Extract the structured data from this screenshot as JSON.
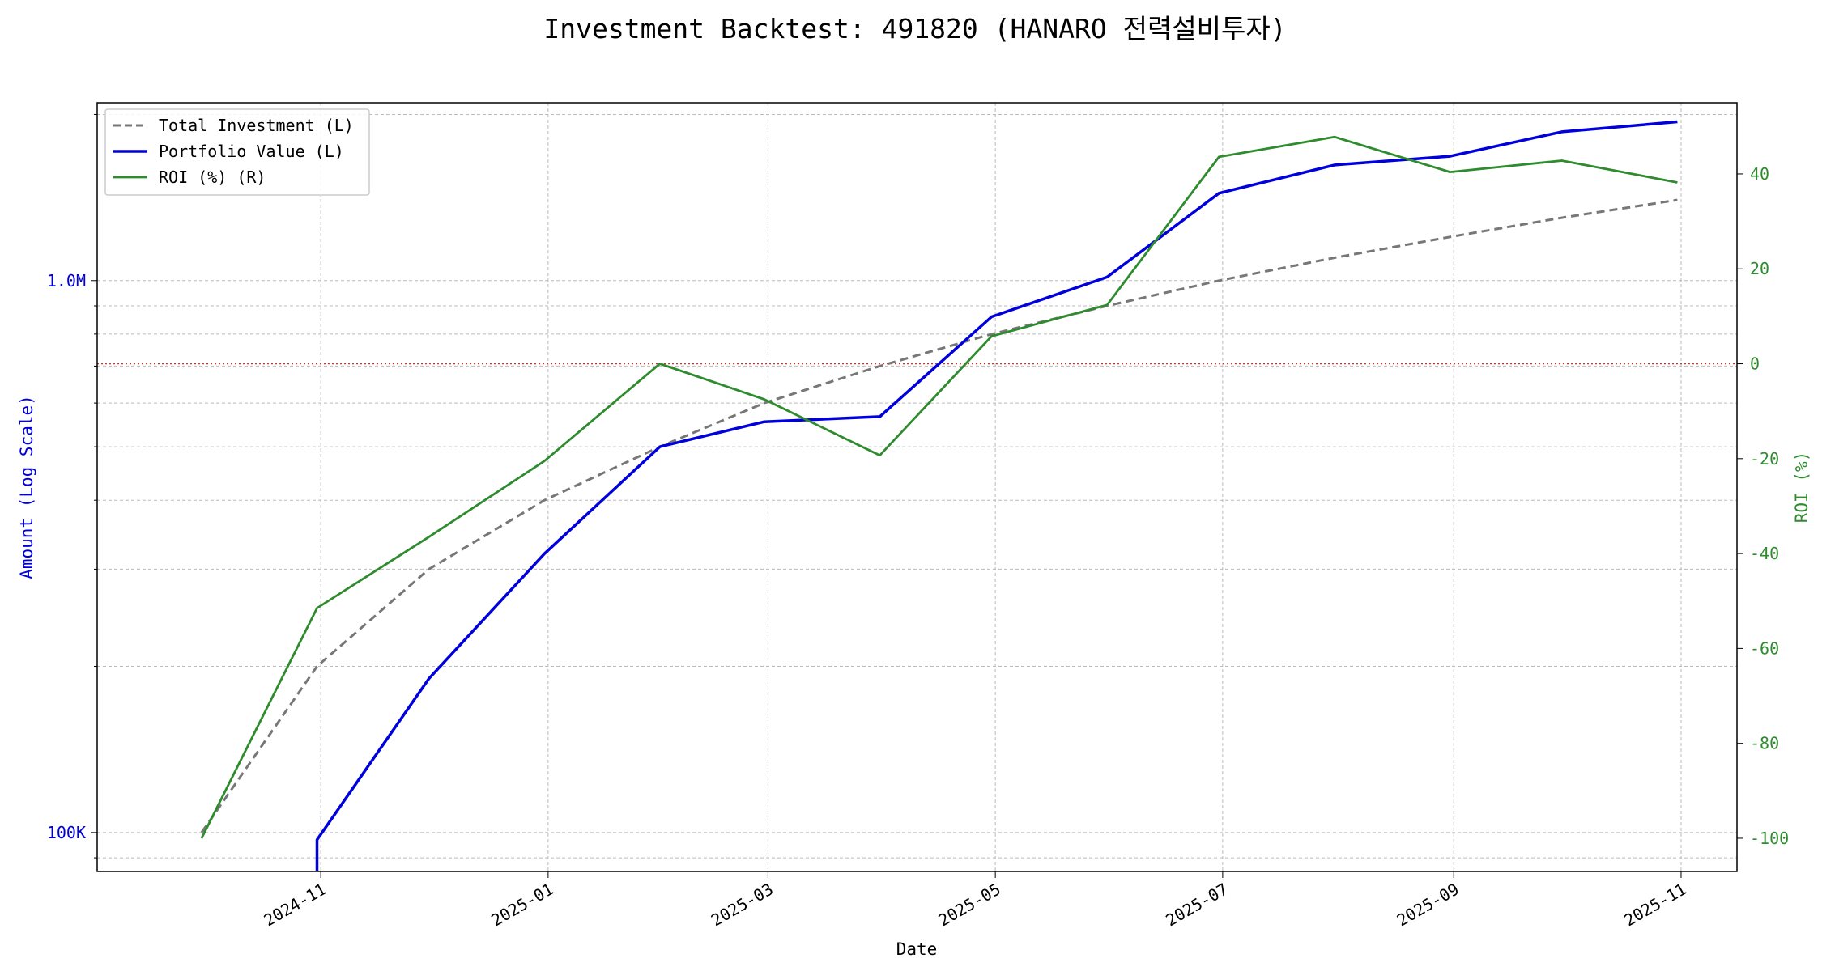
{
  "chart_data": {
    "type": "line",
    "title": "Investment Backtest: 491820 (HANARO 전력설비투자)",
    "xlabel": "Date",
    "ylabel_left": "Amount (Log Scale)",
    "ylabel_right": "ROI (%)",
    "x_ticks": [
      "2024-11",
      "2025-01",
      "2025-03",
      "2025-05",
      "2025-07",
      "2025-09",
      "2025-11"
    ],
    "y_left_scale": "log",
    "y_left_ticks": [
      {
        "value": 100000,
        "label": "100K"
      },
      {
        "value": 1000000,
        "label": "1.0M"
      }
    ],
    "y_left_lim": [
      85000,
      2100000
    ],
    "y_right_ticks": [
      -100,
      -80,
      -60,
      -40,
      -20,
      0,
      20,
      40
    ],
    "y_right_lim": [
      -107,
      55
    ],
    "x_lim": [
      "2024-09-02",
      "2025-11-16"
    ],
    "grid": true,
    "legend_position": "top-left",
    "reference_line": {
      "axis": "right",
      "value": 0,
      "color": "#cc3333",
      "style": "dotted"
    },
    "dates": [
      "2024-09-30",
      "2024-10-31",
      "2024-11-30",
      "2024-12-31",
      "2025-01-31",
      "2025-02-28",
      "2025-03-31",
      "2025-04-30",
      "2025-05-31",
      "2025-06-30",
      "2025-07-31",
      "2025-08-31",
      "2025-09-30",
      "2025-10-31"
    ],
    "series": [
      {
        "name": "Total Investment (L)",
        "axis": "left",
        "color": "#777777",
        "style": "dashed",
        "width": 3,
        "values": [
          100000,
          200000,
          300000,
          400000,
          500000,
          600000,
          700000,
          800000,
          900000,
          1000000,
          1100000,
          1200000,
          1300000,
          1400000
        ]
      },
      {
        "name": "Portfolio Value (L)",
        "axis": "left",
        "color": "#0000dd",
        "style": "solid",
        "width": 3.5,
        "values": [
          null,
          97000,
          190000,
          320000,
          500000,
          555000,
          567000,
          860000,
          1015000,
          1440000,
          1620000,
          1680000,
          1860000,
          1940000
        ]
      },
      {
        "name": "ROI (%) (R)",
        "axis": "right",
        "color": "#2e8b2e",
        "style": "solid",
        "width": 2.8,
        "values": [
          -100,
          -51.5,
          -36.5,
          -20.5,
          0,
          -7.5,
          -19.3,
          5.8,
          12.4,
          43.6,
          47.8,
          40.4,
          42.8,
          38.2
        ]
      }
    ]
  }
}
